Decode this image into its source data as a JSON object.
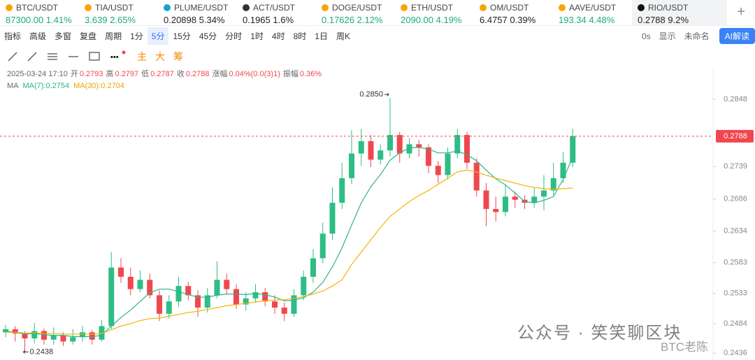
{
  "tickers": [
    {
      "name": "BTC/USDT",
      "price": "87300.00",
      "change": "1.41%",
      "color": "#1fa97a",
      "icon": "#f7a600"
    },
    {
      "name": "TIA/USDT",
      "price": "3.639",
      "change": "2.65%",
      "color": "#1fa97a",
      "icon": "#f7a600"
    },
    {
      "name": "PLUME/USDT",
      "price": "0.20898",
      "change": "5.34%",
      "color": "#222222",
      "icon": "#1a9fd8"
    },
    {
      "name": "ACT/USDT",
      "price": "0.1965",
      "change": "1.6%",
      "color": "#222222",
      "icon": "#333333"
    },
    {
      "name": "DOGE/USDT",
      "price": "0.17626",
      "change": "2.12%",
      "color": "#1fa97a",
      "icon": "#f7a600"
    },
    {
      "name": "ETH/USDT",
      "price": "2090.00",
      "change": "4.19%",
      "color": "#1fa97a",
      "icon": "#f7a600"
    },
    {
      "name": "OM/USDT",
      "price": "6.4757",
      "change": "0.39%",
      "color": "#222222",
      "icon": "#f7a600"
    },
    {
      "name": "AAVE/USDT",
      "price": "193.34",
      "change": "4.48%",
      "color": "#1fa97a",
      "icon": "#f7a600"
    },
    {
      "name": "RIO/USDT",
      "price": "0.2788",
      "change": "9.2%",
      "color": "#222222",
      "icon": "#111111",
      "active": true
    }
  ],
  "toolbar": {
    "left": [
      "指标",
      "高级",
      "多窗",
      "复盘",
      "周期"
    ],
    "periods": [
      "1分",
      "5分",
      "15分",
      "45分",
      "分时",
      "1时",
      "4时",
      "8时",
      "1日",
      "周K"
    ],
    "active_period": 1,
    "right": [
      "0s",
      "显示",
      "未命名"
    ],
    "ai": "AI解读"
  },
  "drawing": {
    "modes": [
      "主",
      "大",
      "筹"
    ]
  },
  "info": {
    "datetime": "2025-03-24 17:10",
    "fields": [
      {
        "label": "开",
        "value": "0.2793"
      },
      {
        "label": "高",
        "value": "0.2797"
      },
      {
        "label": "低",
        "value": "0.2787"
      },
      {
        "label": "收",
        "value": "0.2788"
      },
      {
        "label": "涨幅",
        "value": "0.04%(0.0(3)1)"
      },
      {
        "label": "振幅",
        "value": "0.36%"
      }
    ],
    "ma_title": "MA",
    "ma": [
      {
        "label": "MA(7):0.2754",
        "color": "#2bb38f"
      },
      {
        "label": "MA(30):0.2704",
        "color": "#e8a500"
      }
    ]
  },
  "watermark": {
    "main": "公众号 · 笑笑聊区块",
    "sub": "BTC老陈"
  },
  "chart_data": {
    "type": "candlestick",
    "up_color": "#2ebd85",
    "down_color": "#f0474f",
    "ylim": [
      0.2425,
      0.2899
    ],
    "yticks": [
      0.2436,
      0.2484,
      0.2533,
      0.2583,
      0.2634,
      0.2686,
      0.2739,
      0.2848
    ],
    "last_price": 0.2788,
    "high_label": {
      "value": 0.285,
      "label": "0.2850"
    },
    "low_label": {
      "value": 0.2438,
      "label": "0.2438"
    },
    "candles": [
      [
        0.247,
        0.2482,
        0.2462,
        0.2475
      ],
      [
        0.2475,
        0.248,
        0.2455,
        0.2468
      ],
      [
        0.2468,
        0.2472,
        0.2438,
        0.246
      ],
      [
        0.246,
        0.2485,
        0.2452,
        0.2472
      ],
      [
        0.2472,
        0.2476,
        0.245,
        0.2458
      ],
      [
        0.2458,
        0.2478,
        0.245,
        0.2465
      ],
      [
        0.2465,
        0.247,
        0.2448,
        0.2455
      ],
      [
        0.2455,
        0.2475,
        0.245,
        0.2462
      ],
      [
        0.2462,
        0.248,
        0.2455,
        0.247
      ],
      [
        0.247,
        0.2474,
        0.245,
        0.2458
      ],
      [
        0.2458,
        0.249,
        0.2455,
        0.248
      ],
      [
        0.248,
        0.26,
        0.2475,
        0.2575
      ],
      [
        0.2575,
        0.259,
        0.255,
        0.256
      ],
      [
        0.256,
        0.2575,
        0.253,
        0.254
      ],
      [
        0.254,
        0.257,
        0.2535,
        0.2555
      ],
      [
        0.2555,
        0.2565,
        0.2525,
        0.253
      ],
      [
        0.253,
        0.2538,
        0.2488,
        0.25
      ],
      [
        0.25,
        0.253,
        0.2492,
        0.252
      ],
      [
        0.252,
        0.256,
        0.2512,
        0.2545
      ],
      [
        0.2545,
        0.2552,
        0.2522,
        0.253
      ],
      [
        0.253,
        0.2538,
        0.2495,
        0.251
      ],
      [
        0.251,
        0.2542,
        0.2502,
        0.253
      ],
      [
        0.253,
        0.2585,
        0.2525,
        0.2555
      ],
      [
        0.2555,
        0.2565,
        0.2532,
        0.254
      ],
      [
        0.254,
        0.2548,
        0.2508,
        0.2515
      ],
      [
        0.2515,
        0.2535,
        0.2505,
        0.2525
      ],
      [
        0.2525,
        0.2548,
        0.2518,
        0.2535
      ],
      [
        0.2535,
        0.2542,
        0.2512,
        0.252
      ],
      [
        0.252,
        0.253,
        0.25,
        0.251
      ],
      [
        0.251,
        0.2518,
        0.2488,
        0.25
      ],
      [
        0.25,
        0.254,
        0.2495,
        0.253
      ],
      [
        0.253,
        0.257,
        0.2522,
        0.256
      ],
      [
        0.256,
        0.2605,
        0.255,
        0.259
      ],
      [
        0.259,
        0.2648,
        0.2582,
        0.263
      ],
      [
        0.263,
        0.2705,
        0.262,
        0.268
      ],
      [
        0.268,
        0.2745,
        0.267,
        0.272
      ],
      [
        0.272,
        0.2798,
        0.271,
        0.276
      ],
      [
        0.276,
        0.28,
        0.274,
        0.278
      ],
      [
        0.278,
        0.279,
        0.2738,
        0.275
      ],
      [
        0.275,
        0.2775,
        0.2742,
        0.2765
      ],
      [
        0.2765,
        0.285,
        0.2755,
        0.279
      ],
      [
        0.279,
        0.2795,
        0.2745,
        0.276
      ],
      [
        0.276,
        0.2785,
        0.2752,
        0.2775
      ],
      [
        0.2775,
        0.2782,
        0.2755,
        0.277
      ],
      [
        0.277,
        0.2775,
        0.2728,
        0.274
      ],
      [
        0.274,
        0.2748,
        0.2712,
        0.2725
      ],
      [
        0.2725,
        0.277,
        0.2718,
        0.276
      ],
      [
        0.276,
        0.28,
        0.2752,
        0.279
      ],
      [
        0.279,
        0.2795,
        0.2735,
        0.2745
      ],
      [
        0.2745,
        0.2752,
        0.269,
        0.27
      ],
      [
        0.27,
        0.2712,
        0.2642,
        0.267
      ],
      [
        0.267,
        0.269,
        0.265,
        0.2665
      ],
      [
        0.2665,
        0.271,
        0.2658,
        0.269
      ],
      [
        0.269,
        0.2698,
        0.2672,
        0.2685
      ],
      [
        0.2685,
        0.2692,
        0.267,
        0.268
      ],
      [
        0.268,
        0.2705,
        0.2672,
        0.269
      ],
      [
        0.269,
        0.2725,
        0.2668,
        0.27
      ],
      [
        0.27,
        0.2745,
        0.2692,
        0.272
      ],
      [
        0.272,
        0.2762,
        0.2712,
        0.2745
      ],
      [
        0.2745,
        0.28,
        0.2738,
        0.2788
      ]
    ],
    "series": [
      {
        "name": "MA(7)",
        "color": "#2bb38f",
        "values": [
          0.2472,
          0.247,
          0.2467,
          0.2468,
          0.2466,
          0.2465,
          0.2465,
          0.2463,
          0.2463,
          0.2463,
          0.2465,
          0.248,
          0.2494,
          0.2506,
          0.252,
          0.2534,
          0.254,
          0.254,
          0.2536,
          0.2531,
          0.2527,
          0.2527,
          0.253,
          0.2532,
          0.2532,
          0.2531,
          0.2533,
          0.2531,
          0.2527,
          0.2521,
          0.2522,
          0.2526,
          0.2535,
          0.2551,
          0.2576,
          0.2607,
          0.2644,
          0.268,
          0.2706,
          0.2726,
          0.2749,
          0.2761,
          0.2769,
          0.277,
          0.2767,
          0.2761,
          0.2761,
          0.2764,
          0.2758,
          0.2748,
          0.2733,
          0.2719,
          0.2709,
          0.2696,
          0.2682,
          0.268,
          0.2684,
          0.269,
          0.2718,
          0.2754
        ]
      },
      {
        "name": "MA(30)",
        "color": "#f5b400",
        "values": [
          0.247,
          0.247,
          0.2469,
          0.2469,
          0.2468,
          0.2468,
          0.2467,
          0.2467,
          0.2467,
          0.2467,
          0.2468,
          0.2474,
          0.248,
          0.2484,
          0.2489,
          0.2492,
          0.2493,
          0.2496,
          0.2499,
          0.2502,
          0.2504,
          0.2507,
          0.251,
          0.2513,
          0.2515,
          0.2517,
          0.2519,
          0.2521,
          0.2522,
          0.2523,
          0.2525,
          0.2528,
          0.2532,
          0.2537,
          0.2545,
          0.2555,
          0.258,
          0.26,
          0.262,
          0.264,
          0.2658,
          0.267,
          0.2682,
          0.2692,
          0.27,
          0.271,
          0.272,
          0.273,
          0.2733,
          0.273,
          0.2725,
          0.272,
          0.2716,
          0.2712,
          0.2708,
          0.2705,
          0.2703,
          0.2702,
          0.2703,
          0.2704
        ]
      }
    ]
  }
}
